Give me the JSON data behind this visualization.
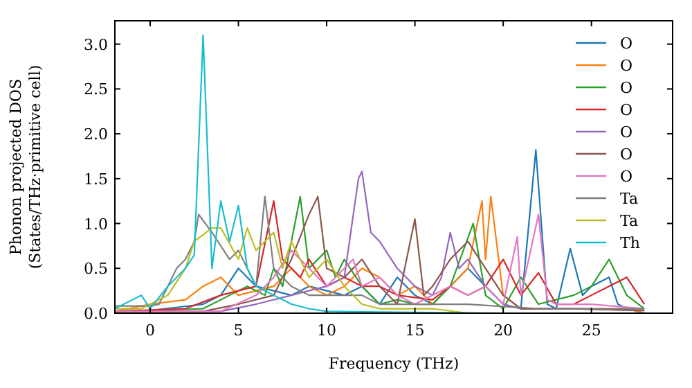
{
  "chart_data": {
    "type": "line",
    "xlabel": "Frequency (THz)",
    "ylabel": "Phonon projected DOS\n(States/THz·primitive cell)",
    "xlim": [
      -2,
      29.6
    ],
    "ylim": [
      0,
      3.26
    ],
    "xticks": [
      0,
      5,
      10,
      15,
      20,
      25
    ],
    "yticks": [
      {
        "value": 0,
        "label": "0.0"
      },
      {
        "value": 0.5,
        "label": "0.5"
      },
      {
        "value": 1,
        "label": "1.0"
      },
      {
        "value": 1.5,
        "label": "1.5"
      },
      {
        "value": 2,
        "label": "2.0"
      },
      {
        "value": 2.5,
        "label": "2.5"
      },
      {
        "value": 3,
        "label": "3.0"
      }
    ],
    "legend": "top right",
    "grid": false,
    "series": [
      {
        "name": "O",
        "color": "#1f77b4",
        "x": [
          -2,
          0,
          3,
          4,
          5,
          6,
          8,
          9,
          11,
          12,
          13,
          14,
          15,
          16,
          17,
          18,
          19,
          20,
          21,
          21.85,
          22.5,
          23,
          23.8,
          24.5,
          25,
          26,
          26.5,
          27,
          28
        ],
        "values": [
          0.02,
          0.03,
          0.1,
          0.2,
          0.5,
          0.3,
          0.2,
          0.3,
          0.2,
          0.3,
          0.1,
          0.4,
          0.2,
          0.1,
          0.3,
          0.5,
          0.3,
          0.1,
          0.05,
          1.82,
          0.1,
          0.05,
          0.72,
          0.2,
          0.3,
          0.4,
          0.1,
          0.05,
          0
        ]
      },
      {
        "name": "O",
        "color": "#ff7f0e",
        "x": [
          -2,
          0,
          2,
          3,
          4,
          5,
          6,
          7,
          8,
          9,
          10,
          11,
          12,
          13,
          14,
          15,
          16,
          17,
          18,
          18.8,
          19,
          19.3,
          20,
          21,
          24,
          27,
          28
        ],
        "values": [
          0.02,
          0.1,
          0.15,
          0.3,
          0.4,
          0.2,
          0.25,
          0.3,
          0.5,
          0.3,
          0.2,
          0.3,
          0.5,
          0.4,
          0.2,
          0.3,
          0.1,
          0.3,
          0.5,
          1.25,
          0.6,
          1.3,
          0.2,
          0.05,
          0.05,
          0.05,
          0
        ]
      },
      {
        "name": "O",
        "color": "#2ca02c",
        "x": [
          -2,
          3,
          4.5,
          5.5,
          6.5,
          7,
          7.5,
          8.5,
          9,
          10,
          10.5,
          11,
          12,
          13,
          14,
          15,
          16,
          17,
          18.3,
          19,
          20,
          21,
          22,
          24,
          25,
          26,
          27,
          28
        ],
        "values": [
          0.02,
          0.05,
          0.2,
          0.3,
          0.2,
          0.5,
          0.3,
          1.3,
          0.5,
          0.7,
          0.4,
          0.6,
          0.3,
          0.1,
          0.15,
          0.1,
          0.1,
          0.3,
          1.0,
          0.2,
          0.05,
          0.4,
          0.1,
          0.2,
          0.3,
          0.6,
          0.2,
          0.05
        ]
      },
      {
        "name": "O",
        "color": "#d62728",
        "x": [
          -2,
          2,
          4,
          6,
          7,
          7.5,
          8,
          8.5,
          9,
          10,
          11,
          12,
          13,
          14,
          16,
          17,
          18,
          19,
          20,
          21,
          22,
          23,
          24,
          25,
          26,
          27,
          28
        ],
        "values": [
          0.02,
          0.05,
          0.2,
          0.3,
          1.25,
          0.6,
          0.5,
          0.4,
          0.6,
          0.3,
          0.4,
          0.3,
          0.3,
          0.2,
          0.15,
          0.3,
          0.2,
          0.3,
          0.6,
          0.2,
          0.45,
          0.1,
          0.1,
          0.2,
          0.3,
          0.4,
          0.1
        ]
      },
      {
        "name": "O",
        "color": "#9467bd",
        "x": [
          -2,
          4,
          6,
          8,
          10,
          11,
          11.8,
          12,
          12.5,
          13,
          14,
          15,
          16,
          16.5,
          17,
          17.5,
          18,
          19,
          20,
          21,
          24,
          28
        ],
        "values": [
          0.02,
          0.02,
          0.1,
          0.2,
          0.3,
          0.4,
          1.5,
          1.58,
          0.9,
          0.8,
          0.5,
          0.3,
          0.2,
          0.4,
          0.9,
          0.5,
          0.6,
          0.3,
          0.1,
          0.05,
          0.05,
          0.03
        ]
      },
      {
        "name": "O",
        "color": "#8c564b",
        "x": [
          -2,
          3,
          5,
          7,
          8,
          9,
          9.5,
          10,
          11,
          12,
          13,
          14,
          15,
          15.5,
          16,
          17,
          18,
          19,
          20,
          21,
          24,
          28
        ],
        "values": [
          0.02,
          0.02,
          0.1,
          0.2,
          0.6,
          1.1,
          1.3,
          0.5,
          0.4,
          0.6,
          0.3,
          0.1,
          1.05,
          0.2,
          0.3,
          0.6,
          0.8,
          0.5,
          0.2,
          0.05,
          0.05,
          0.03
        ]
      },
      {
        "name": "O",
        "color": "#e377c2",
        "x": [
          -2,
          4,
          6,
          7,
          8,
          9,
          10,
          11.5,
          12,
          13,
          14,
          15,
          17,
          18,
          19,
          20,
          20.8,
          21,
          22,
          22.5,
          23,
          25,
          28
        ],
        "values": [
          0.02,
          0.02,
          0.2,
          0.4,
          0.7,
          0.5,
          0.3,
          0.6,
          0.3,
          0.4,
          0.2,
          0.1,
          0.3,
          0.2,
          0.3,
          0.1,
          0.85,
          0.2,
          1.1,
          0.15,
          0.1,
          0.1,
          0.05
        ]
      },
      {
        "name": "Ta",
        "color": "#7f7f7f",
        "x": [
          -2,
          0,
          0.5,
          1,
          1.5,
          2,
          2.5,
          2.75,
          3.5,
          4.5,
          5,
          6,
          6.5,
          7,
          8,
          9,
          12,
          13,
          18,
          22,
          28
        ],
        "values": [
          0.08,
          0.08,
          0.1,
          0.3,
          0.5,
          0.6,
          0.8,
          1.1,
          0.9,
          0.6,
          0.7,
          0.3,
          1.3,
          0.5,
          0.3,
          0.2,
          0.2,
          0.1,
          0.1,
          0.05,
          0.05
        ]
      },
      {
        "name": "Ta",
        "color": "#bcbd22",
        "x": [
          -2,
          -0.5,
          1,
          2,
          2.5,
          3.5,
          4,
          5,
          5.5,
          6,
          7,
          7.5,
          8,
          9,
          10,
          11,
          12,
          13,
          16,
          18
        ],
        "values": [
          0.05,
          0.05,
          0.2,
          0.5,
          0.8,
          0.95,
          0.95,
          0.6,
          0.95,
          0.7,
          0.9,
          0.5,
          0.8,
          0.4,
          0.6,
          0.3,
          0.1,
          0.05,
          0.05,
          0
        ]
      },
      {
        "name": "Th",
        "color": "#17becf",
        "x": [
          -2,
          -0.5,
          0,
          1,
          2,
          2.5,
          3,
          3.5,
          4,
          4.5,
          5,
          5.5,
          6,
          7,
          8,
          9,
          10,
          14,
          20
        ],
        "values": [
          0.05,
          0.2,
          0.05,
          0.3,
          0.5,
          0.65,
          3.1,
          0.5,
          1.25,
          0.8,
          1.2,
          0.5,
          0.3,
          0.2,
          0.1,
          0.05,
          0.02,
          0.01,
          0
        ]
      }
    ]
  }
}
